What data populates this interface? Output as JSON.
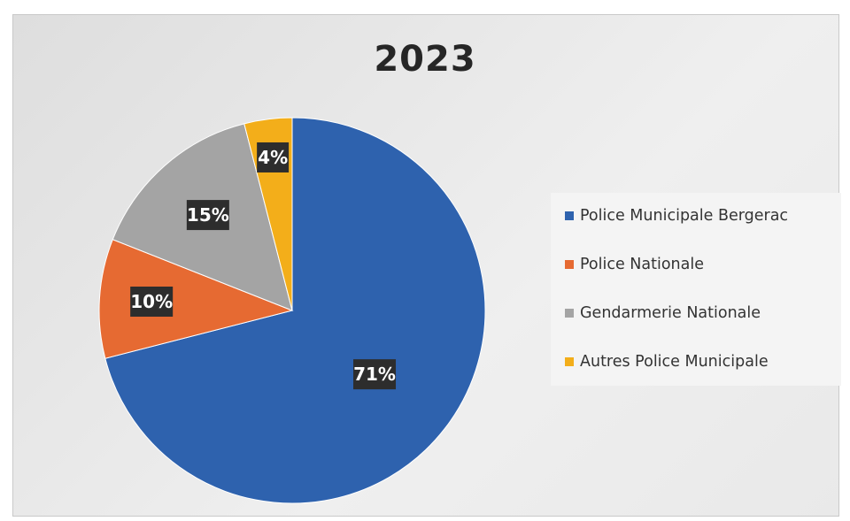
{
  "chart_data": {
    "type": "pie",
    "title": "2023",
    "categories": [
      "Police Municipale Bergerac",
      "Police Nationale",
      "Gendarmerie Nationale",
      "Autres Police Municipale"
    ],
    "values": [
      71,
      10,
      15,
      4
    ],
    "data_labels": [
      "71%",
      "10%",
      "15%",
      "4%"
    ],
    "colors": [
      "#2e62ae",
      "#e66a32",
      "#a4a4a4",
      "#f3ae1a"
    ],
    "legend_position": "right",
    "start_angle": "top, clockwise"
  }
}
